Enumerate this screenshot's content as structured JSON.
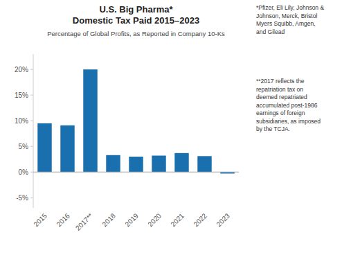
{
  "chart_data": {
    "type": "bar",
    "title": [
      "U.S. Big Pharma*",
      "Domestic Tax Paid 2015–2023"
    ],
    "subtitle": "Percentage of Global Profits, as Reported in Company 10-Ks",
    "annotations": [
      "*Pfizer, Eli Lily, Johnson &\nJohnson, Merck, Bristol\nMyers Squibb, Amgen,\nand Gilead",
      "**2017 reflects the\nrepatriation tax on\ndeemed repatriated\naccumulated post-1986\nearnings of foreign\nsubsidiaries, as imposed\nby the TCJA."
    ],
    "categories": [
      "2015",
      "2016",
      "2017**",
      "2018",
      "2019",
      "2020",
      "2021",
      "2022",
      "2023"
    ],
    "values": [
      9.5,
      9.1,
      20.0,
      3.3,
      3.0,
      3.2,
      3.7,
      3.1,
      -0.3
    ],
    "color": "#1a6faf",
    "ylim": [
      -7,
      23
    ],
    "yticks": [
      {
        "value": -5,
        "label": "-5%"
      },
      {
        "value": 0,
        "label": "0%"
      },
      {
        "value": 5,
        "label": "5%"
      },
      {
        "value": 10,
        "label": "10%"
      },
      {
        "value": 15,
        "label": "15%"
      },
      {
        "value": 20,
        "label": "20%"
      }
    ],
    "grid": false
  }
}
